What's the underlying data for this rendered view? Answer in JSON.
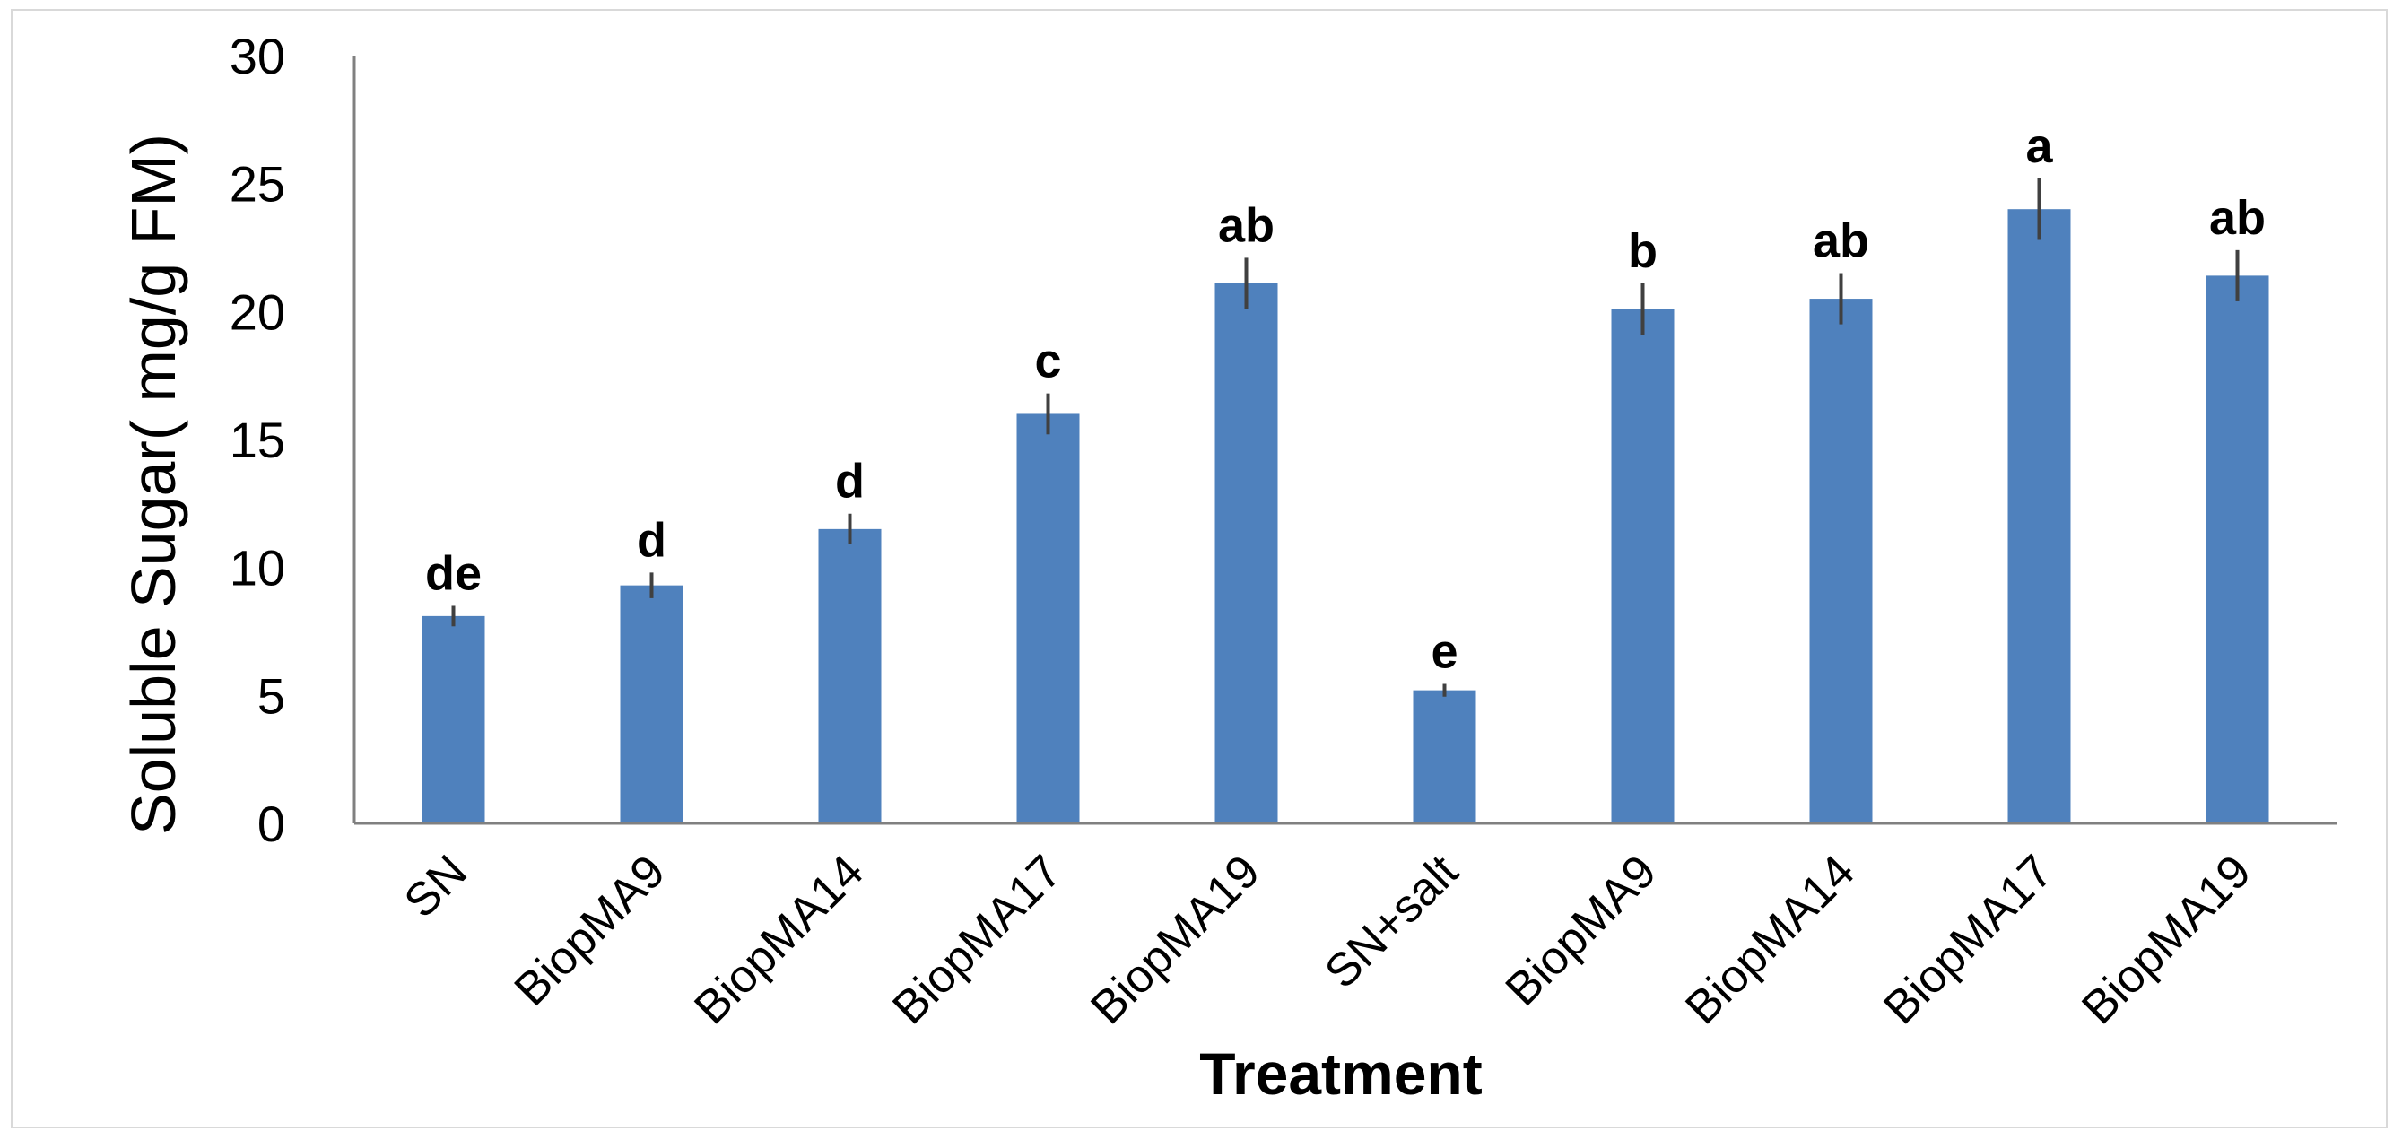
{
  "chart_data": {
    "type": "bar",
    "title": "",
    "xlabel": "Treatment",
    "ylabel": "Soluble Sugar( mg/g FM)",
    "ylim": [
      0,
      30
    ],
    "yticks": [
      "0",
      "5",
      "10",
      "15",
      "20",
      "25",
      "30"
    ],
    "grid": false,
    "legend": "none",
    "categories": [
      "SN",
      "BiopMA9",
      "BiopMA14",
      "BiopMA17",
      "BiopMA19",
      "SN+salt",
      "BiopMA9",
      "BiopMA14",
      "BiopMA17",
      "BiopMA19"
    ],
    "values": [
      8.1,
      9.3,
      11.5,
      16.0,
      21.1,
      5.2,
      20.1,
      20.5,
      24.0,
      21.4
    ],
    "errors": [
      0.4,
      0.5,
      0.6,
      0.8,
      1.0,
      0.25,
      1.0,
      1.0,
      1.2,
      1.0
    ],
    "significance_letters": [
      "de",
      "d",
      "d",
      "c",
      "ab",
      "e",
      "b",
      "ab",
      "a",
      "ab"
    ],
    "bar_color": "#4f81bd",
    "error_bar_color": "#404040",
    "axis_color": "#808080"
  }
}
